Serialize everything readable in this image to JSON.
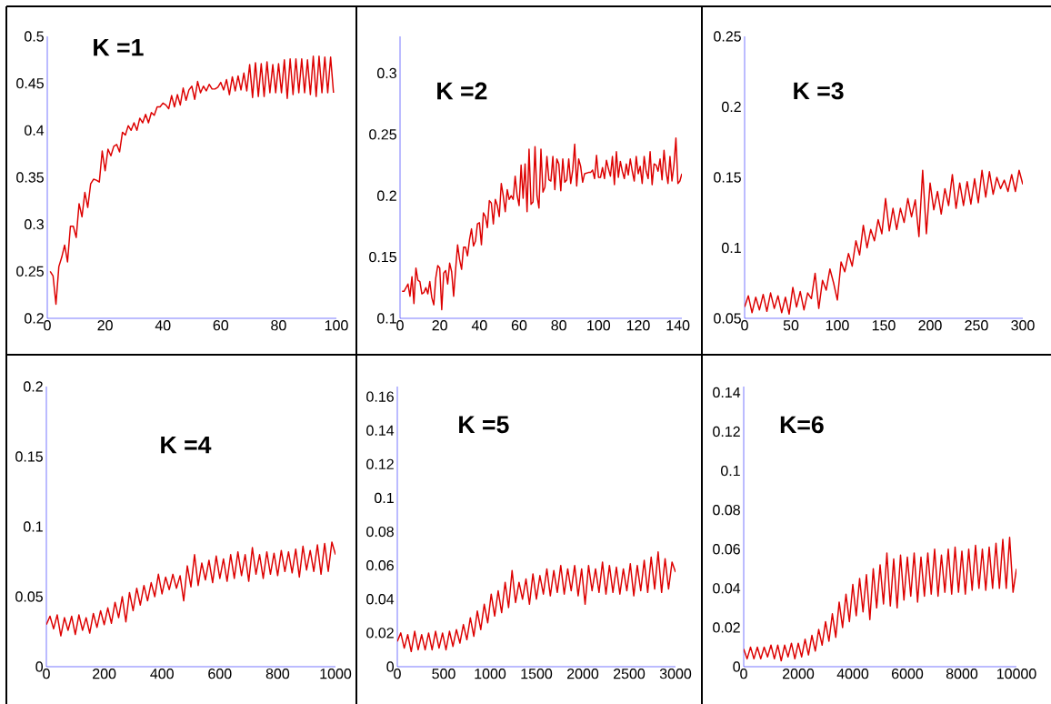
{
  "chart_data": [
    {
      "type": "line",
      "title": "K =1",
      "color": "#dd0000",
      "xlim": [
        0,
        100
      ],
      "ylim": [
        0.2,
        0.5
      ],
      "xticks": [
        0,
        20,
        40,
        60,
        80,
        100
      ],
      "yticks": [
        0.2,
        0.25,
        0.3,
        0.35,
        0.4,
        0.45,
        0.5
      ],
      "x": [
        1,
        2,
        3,
        4,
        5,
        6,
        7,
        8,
        9,
        10,
        11,
        12,
        13,
        14,
        15,
        16,
        17,
        18,
        19,
        20,
        21,
        22,
        23,
        24,
        25,
        26,
        27,
        28,
        29,
        30,
        31,
        32,
        33,
        34,
        35,
        36,
        37,
        38,
        39,
        40,
        41,
        42,
        43,
        44,
        45,
        46,
        47,
        48,
        49,
        50,
        51,
        52,
        53,
        54,
        55,
        56,
        57,
        58,
        59,
        60,
        61,
        62,
        63,
        64,
        65,
        66,
        67,
        68,
        69,
        70,
        71,
        72,
        73,
        74,
        75,
        76,
        77,
        78,
        79,
        80,
        81,
        82,
        83,
        84,
        85,
        86,
        87,
        88,
        89,
        90,
        91,
        92,
        93,
        94,
        95,
        96,
        97,
        98,
        99
      ],
      "values": [
        0.25,
        0.245,
        0.215,
        0.255,
        0.265,
        0.278,
        0.26,
        0.298,
        0.298,
        0.286,
        0.322,
        0.308,
        0.334,
        0.318,
        0.343,
        0.348,
        0.347,
        0.345,
        0.378,
        0.357,
        0.38,
        0.373,
        0.383,
        0.385,
        0.377,
        0.398,
        0.395,
        0.405,
        0.4,
        0.408,
        0.4,
        0.413,
        0.408,
        0.417,
        0.408,
        0.419,
        0.416,
        0.425,
        0.425,
        0.429,
        0.427,
        0.423,
        0.437,
        0.425,
        0.438,
        0.427,
        0.445,
        0.432,
        0.443,
        0.447,
        0.433,
        0.452,
        0.44,
        0.447,
        0.442,
        0.449,
        0.444,
        0.444,
        0.446,
        0.451,
        0.443,
        0.454,
        0.438,
        0.457,
        0.442,
        0.458,
        0.443,
        0.461,
        0.442,
        0.47,
        0.435,
        0.472,
        0.436,
        0.471,
        0.436,
        0.473,
        0.44,
        0.47,
        0.44,
        0.471,
        0.44,
        0.475,
        0.434,
        0.476,
        0.438,
        0.476,
        0.44,
        0.476,
        0.44,
        0.475,
        0.438,
        0.479,
        0.436,
        0.479,
        0.44,
        0.478,
        0.44,
        0.478,
        0.44
      ]
    },
    {
      "type": "line",
      "title": "K =2",
      "color": "#dd0000",
      "xlim": [
        0,
        142
      ],
      "ylim": [
        0.1,
        0.33
      ],
      "xticks": [
        0,
        20,
        40,
        60,
        80,
        100,
        120,
        140
      ],
      "yticks": [
        0.1,
        0.15,
        0.2,
        0.25,
        0.3
      ],
      "x": [
        1,
        2,
        4,
        5,
        6,
        7,
        8,
        9,
        10,
        11,
        12,
        13,
        14,
        15,
        16,
        17,
        18,
        19,
        20,
        21,
        22,
        23,
        24,
        25,
        26,
        27,
        28,
        29,
        30,
        31,
        32,
        33,
        34,
        35,
        36,
        37,
        38,
        39,
        40,
        41,
        42,
        43,
        44,
        45,
        46,
        47,
        48,
        49,
        50,
        51,
        52,
        53,
        54,
        55,
        56,
        57,
        58,
        59,
        60,
        61,
        62,
        63,
        64,
        65,
        66,
        67,
        68,
        69,
        70,
        71,
        72,
        73,
        74,
        75,
        76,
        77,
        78,
        79,
        80,
        81,
        82,
        83,
        84,
        85,
        86,
        87,
        88,
        89,
        90,
        91,
        92,
        93,
        95,
        96,
        97,
        98,
        99,
        100,
        101,
        102,
        103,
        104,
        105,
        106,
        107,
        108,
        109,
        110,
        111,
        112,
        113,
        114,
        115,
        116,
        117,
        118,
        119,
        120,
        121,
        122,
        123,
        124,
        125,
        126,
        127,
        128,
        129,
        130,
        131,
        132,
        133,
        134,
        135,
        136,
        137,
        138,
        139,
        140,
        141,
        142
      ],
      "values": [
        0.122,
        0.122,
        0.128,
        0.118,
        0.134,
        0.112,
        0.141,
        0.131,
        0.13,
        0.12,
        0.121,
        0.125,
        0.12,
        0.13,
        0.117,
        0.111,
        0.133,
        0.143,
        0.141,
        0.107,
        0.137,
        0.139,
        0.128,
        0.145,
        0.138,
        0.118,
        0.14,
        0.16,
        0.148,
        0.14,
        0.158,
        0.158,
        0.151,
        0.164,
        0.173,
        0.159,
        0.163,
        0.177,
        0.178,
        0.16,
        0.186,
        0.183,
        0.174,
        0.196,
        0.194,
        0.177,
        0.197,
        0.192,
        0.183,
        0.21,
        0.2,
        0.187,
        0.205,
        0.197,
        0.2,
        0.197,
        0.216,
        0.2,
        0.192,
        0.225,
        0.198,
        0.226,
        0.187,
        0.238,
        0.193,
        0.195,
        0.24,
        0.2,
        0.19,
        0.238,
        0.203,
        0.207,
        0.232,
        0.213,
        0.212,
        0.232,
        0.205,
        0.23,
        0.226,
        0.204,
        0.23,
        0.211,
        0.213,
        0.23,
        0.21,
        0.221,
        0.242,
        0.208,
        0.23,
        0.224,
        0.211,
        0.218,
        0.219,
        0.219,
        0.221,
        0.214,
        0.233,
        0.215,
        0.215,
        0.223,
        0.214,
        0.229,
        0.222,
        0.216,
        0.232,
        0.209,
        0.236,
        0.215,
        0.228,
        0.22,
        0.214,
        0.226,
        0.217,
        0.23,
        0.22,
        0.212,
        0.232,
        0.218,
        0.224,
        0.21,
        0.232,
        0.22,
        0.214,
        0.236,
        0.209,
        0.226,
        0.225,
        0.22,
        0.23,
        0.213,
        0.237,
        0.22,
        0.21,
        0.232,
        0.212,
        0.225,
        0.247,
        0.21,
        0.212,
        0.218
      ]
    },
    {
      "type": "line",
      "title": "K =3",
      "color": "#dd0000",
      "xlim": [
        0,
        300
      ],
      "ylim": [
        0.05,
        0.25
      ],
      "xticks": [
        0,
        50,
        100,
        150,
        200,
        250,
        300
      ],
      "yticks": [
        0.05,
        0.1,
        0.15,
        0.2,
        0.25
      ],
      "x": [
        0,
        4,
        8,
        12,
        16,
        20,
        24,
        28,
        32,
        36,
        40,
        44,
        48,
        52,
        56,
        60,
        64,
        68,
        72,
        76,
        80,
        84,
        88,
        92,
        96,
        100,
        104,
        108,
        112,
        116,
        120,
        124,
        128,
        132,
        136,
        140,
        144,
        148,
        152,
        156,
        160,
        164,
        168,
        172,
        176,
        180,
        184,
        188,
        192,
        196,
        200,
        204,
        208,
        212,
        216,
        220,
        224,
        228,
        232,
        236,
        240,
        244,
        248,
        252,
        256,
        260,
        264,
        268,
        272,
        276,
        280,
        284,
        288,
        292,
        296,
        300
      ],
      "values": [
        0.058,
        0.066,
        0.054,
        0.065,
        0.056,
        0.067,
        0.055,
        0.068,
        0.057,
        0.066,
        0.054,
        0.065,
        0.053,
        0.072,
        0.058,
        0.069,
        0.056,
        0.068,
        0.064,
        0.082,
        0.057,
        0.077,
        0.07,
        0.085,
        0.075,
        0.063,
        0.09,
        0.083,
        0.096,
        0.087,
        0.105,
        0.095,
        0.116,
        0.1,
        0.113,
        0.105,
        0.12,
        0.11,
        0.135,
        0.112,
        0.128,
        0.113,
        0.128,
        0.118,
        0.135,
        0.122,
        0.134,
        0.108,
        0.155,
        0.11,
        0.146,
        0.127,
        0.14,
        0.124,
        0.142,
        0.13,
        0.152,
        0.128,
        0.146,
        0.13,
        0.147,
        0.131,
        0.149,
        0.132,
        0.155,
        0.136,
        0.154,
        0.138,
        0.15,
        0.142,
        0.148,
        0.14,
        0.152,
        0.14,
        0.155,
        0.145
      ]
    },
    {
      "type": "line",
      "title": "K =4",
      "color": "#dd0000",
      "xlim": [
        0,
        1000
      ],
      "ylim": [
        0,
        0.2
      ],
      "xticks": [
        0,
        200,
        400,
        600,
        800,
        1000
      ],
      "yticks": [
        0,
        0.05,
        0.1,
        0.15,
        0.2
      ],
      "x": [
        0,
        12.5,
        25,
        37.5,
        50,
        62.5,
        75,
        87.5,
        100,
        112.5,
        125,
        137.5,
        150,
        162.5,
        175,
        187.5,
        200,
        212.5,
        225,
        237.5,
        250,
        262.5,
        275,
        287.5,
        300,
        312.5,
        325,
        337.5,
        350,
        362.5,
        375,
        387.5,
        400,
        412.5,
        425,
        437.5,
        450,
        462.5,
        475,
        487.5,
        500,
        512.5,
        525,
        537.5,
        550,
        562.5,
        575,
        587.5,
        600,
        612.5,
        625,
        637.5,
        650,
        662.5,
        675,
        687.5,
        700,
        712.5,
        725,
        737.5,
        750,
        762.5,
        775,
        787.5,
        800,
        812.5,
        825,
        837.5,
        850,
        862.5,
        875,
        887.5,
        900,
        912.5,
        925,
        937.5,
        950,
        962.5,
        975,
        987.5,
        1000
      ],
      "values": [
        0.03,
        0.036,
        0.027,
        0.037,
        0.022,
        0.035,
        0.026,
        0.036,
        0.023,
        0.037,
        0.026,
        0.035,
        0.024,
        0.038,
        0.028,
        0.04,
        0.03,
        0.042,
        0.031,
        0.046,
        0.035,
        0.05,
        0.032,
        0.053,
        0.04,
        0.056,
        0.044,
        0.058,
        0.047,
        0.06,
        0.05,
        0.066,
        0.052,
        0.064,
        0.055,
        0.066,
        0.056,
        0.065,
        0.047,
        0.072,
        0.057,
        0.08,
        0.058,
        0.074,
        0.062,
        0.076,
        0.06,
        0.079,
        0.063,
        0.077,
        0.061,
        0.08,
        0.063,
        0.082,
        0.065,
        0.08,
        0.061,
        0.085,
        0.066,
        0.08,
        0.063,
        0.082,
        0.066,
        0.081,
        0.065,
        0.083,
        0.068,
        0.082,
        0.067,
        0.084,
        0.064,
        0.086,
        0.069,
        0.083,
        0.068,
        0.087,
        0.066,
        0.088,
        0.068,
        0.089,
        0.08
      ]
    },
    {
      "type": "line",
      "title": "K =5",
      "color": "#dd0000",
      "xlim": [
        0,
        3000
      ],
      "ylim": [
        0,
        0.166
      ],
      "xticks": [
        0,
        500,
        1000,
        1500,
        2000,
        2500,
        3000
      ],
      "yticks": [
        0,
        0.02,
        0.04,
        0.06,
        0.08,
        0.1,
        0.12,
        0.14,
        0.16
      ],
      "x": [
        0,
        37.5,
        75,
        112.5,
        150,
        187.5,
        225,
        262.5,
        300,
        337.5,
        375,
        412.5,
        450,
        487.5,
        525,
        562.5,
        600,
        637.5,
        675,
        712.5,
        750,
        787.5,
        825,
        862.5,
        900,
        937.5,
        975,
        1012.5,
        1050,
        1087.5,
        1125,
        1162.5,
        1200,
        1237.5,
        1275,
        1312.5,
        1350,
        1387.5,
        1425,
        1462.5,
        1500,
        1537.5,
        1575,
        1612.5,
        1650,
        1687.5,
        1725,
        1762.5,
        1800,
        1837.5,
        1875,
        1912.5,
        1950,
        1987.5,
        2025,
        2062.5,
        2100,
        2137.5,
        2175,
        2212.5,
        2250,
        2287.5,
        2325,
        2362.5,
        2400,
        2437.5,
        2475,
        2512.5,
        2550,
        2587.5,
        2625,
        2662.5,
        2700,
        2737.5,
        2775,
        2812.5,
        2850,
        2887.5,
        2925,
        2962.5,
        3000
      ],
      "values": [
        0.015,
        0.02,
        0.011,
        0.019,
        0.009,
        0.021,
        0.01,
        0.019,
        0.01,
        0.02,
        0.01,
        0.021,
        0.011,
        0.02,
        0.01,
        0.021,
        0.012,
        0.022,
        0.014,
        0.025,
        0.016,
        0.029,
        0.018,
        0.033,
        0.022,
        0.037,
        0.026,
        0.043,
        0.03,
        0.045,
        0.032,
        0.05,
        0.035,
        0.057,
        0.038,
        0.05,
        0.04,
        0.052,
        0.037,
        0.055,
        0.04,
        0.054,
        0.043,
        0.058,
        0.042,
        0.057,
        0.044,
        0.06,
        0.043,
        0.058,
        0.045,
        0.06,
        0.042,
        0.058,
        0.037,
        0.06,
        0.045,
        0.058,
        0.044,
        0.062,
        0.043,
        0.06,
        0.044,
        0.059,
        0.043,
        0.058,
        0.045,
        0.061,
        0.042,
        0.06,
        0.045,
        0.063,
        0.044,
        0.065,
        0.046,
        0.068,
        0.044,
        0.064,
        0.046,
        0.062,
        0.056
      ]
    },
    {
      "type": "line",
      "title": "K=6",
      "color": "#dd0000",
      "xlim": [
        0,
        10000
      ],
      "ylim": [
        0,
        0.143
      ],
      "xticks": [
        0,
        2000,
        4000,
        6000,
        8000,
        10000
      ],
      "yticks": [
        0,
        0.02,
        0.04,
        0.06,
        0.08,
        0.1,
        0.12,
        0.14
      ],
      "x": [
        0,
        125,
        250,
        375,
        500,
        625,
        750,
        875,
        1000,
        1125,
        1250,
        1375,
        1500,
        1625,
        1750,
        1875,
        2000,
        2125,
        2250,
        2375,
        2500,
        2625,
        2750,
        2875,
        3000,
        3125,
        3250,
        3375,
        3500,
        3625,
        3750,
        3875,
        4000,
        4125,
        4250,
        4375,
        4500,
        4625,
        4750,
        4875,
        5000,
        5125,
        5250,
        5375,
        5500,
        5625,
        5750,
        5875,
        6000,
        6125,
        6250,
        6375,
        6500,
        6625,
        6750,
        6875,
        7000,
        7125,
        7250,
        7375,
        7500,
        7625,
        7750,
        7875,
        8000,
        8125,
        8250,
        8375,
        8500,
        8625,
        8750,
        8875,
        9000,
        9125,
        9250,
        9375,
        9500,
        9625,
        9750,
        9875,
        10000
      ],
      "values": [
        0.009,
        0.004,
        0.01,
        0.004,
        0.01,
        0.004,
        0.01,
        0.005,
        0.011,
        0.004,
        0.011,
        0.003,
        0.011,
        0.005,
        0.012,
        0.004,
        0.012,
        0.005,
        0.014,
        0.006,
        0.016,
        0.008,
        0.019,
        0.011,
        0.023,
        0.013,
        0.027,
        0.015,
        0.033,
        0.02,
        0.037,
        0.023,
        0.042,
        0.026,
        0.045,
        0.028,
        0.047,
        0.024,
        0.05,
        0.03,
        0.052,
        0.032,
        0.058,
        0.031,
        0.055,
        0.03,
        0.057,
        0.034,
        0.056,
        0.036,
        0.058,
        0.033,
        0.056,
        0.036,
        0.058,
        0.037,
        0.06,
        0.036,
        0.057,
        0.038,
        0.06,
        0.037,
        0.061,
        0.038,
        0.059,
        0.037,
        0.06,
        0.039,
        0.062,
        0.04,
        0.06,
        0.039,
        0.061,
        0.04,
        0.063,
        0.04,
        0.065,
        0.04,
        0.066,
        0.038,
        0.05
      ]
    }
  ]
}
